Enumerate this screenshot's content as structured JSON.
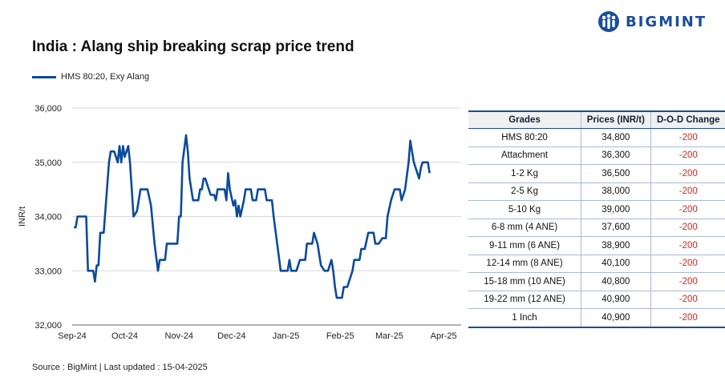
{
  "brand": {
    "name": "BIGMINT",
    "logo_color": "#1a4d9c"
  },
  "chart_data": {
    "type": "line",
    "title": "India : Alang ship breaking scrap price trend",
    "ylabel": "INR/t",
    "xlabel": "",
    "ylim": [
      32000,
      36000
    ],
    "y_ticks": [
      "32,000",
      "33,000",
      "34,000",
      "35,000",
      "36,000"
    ],
    "x_ticks": [
      "Sep-24",
      "Oct-24",
      "Nov-24",
      "Dec-24",
      "Jan-25",
      "Feb-25",
      "Mar-25",
      "Apr-25"
    ],
    "grid": "horizontal",
    "legend_position": "top-left",
    "series": [
      {
        "name": "HMS 80:20, Exy Alang",
        "color": "#0c4a9c",
        "points": [
          [
            "2024-09-02",
            33800
          ],
          [
            "2024-09-03",
            33800
          ],
          [
            "2024-09-04",
            34000
          ],
          [
            "2024-09-09",
            34000
          ],
          [
            "2024-09-10",
            33000
          ],
          [
            "2024-09-13",
            33000
          ],
          [
            "2024-09-14",
            32800
          ],
          [
            "2024-09-15",
            33100
          ],
          [
            "2024-09-16",
            33100
          ],
          [
            "2024-09-17",
            33700
          ],
          [
            "2024-09-19",
            33700
          ],
          [
            "2024-09-22",
            35000
          ],
          [
            "2024-09-23",
            35200
          ],
          [
            "2024-09-25",
            35200
          ],
          [
            "2024-09-27",
            35000
          ],
          [
            "2024-09-28",
            35300
          ],
          [
            "2024-09-29",
            35000
          ],
          [
            "2024-09-30",
            35300
          ],
          [
            "2024-10-01",
            35100
          ],
          [
            "2024-10-02",
            35200
          ],
          [
            "2024-10-03",
            35300
          ],
          [
            "2024-10-04",
            35000
          ],
          [
            "2024-10-06",
            34000
          ],
          [
            "2024-10-08",
            34100
          ],
          [
            "2024-10-10",
            34500
          ],
          [
            "2024-10-14",
            34500
          ],
          [
            "2024-10-16",
            34200
          ],
          [
            "2024-10-18",
            33500
          ],
          [
            "2024-10-20",
            33000
          ],
          [
            "2024-10-21",
            33200
          ],
          [
            "2024-10-24",
            33200
          ],
          [
            "2024-10-25",
            33500
          ],
          [
            "2024-10-31",
            33500
          ],
          [
            "2024-11-01",
            34000
          ],
          [
            "2024-11-02",
            34000
          ],
          [
            "2024-11-03",
            35000
          ],
          [
            "2024-11-05",
            35500
          ],
          [
            "2024-11-06",
            35200
          ],
          [
            "2024-11-07",
            34700
          ],
          [
            "2024-11-09",
            34300
          ],
          [
            "2024-11-12",
            34300
          ],
          [
            "2024-11-13",
            34500
          ],
          [
            "2024-11-14",
            34500
          ],
          [
            "2024-11-15",
            34700
          ],
          [
            "2024-11-16",
            34700
          ],
          [
            "2024-11-18",
            34500
          ],
          [
            "2024-11-19",
            34400
          ],
          [
            "2024-11-21",
            34400
          ],
          [
            "2024-11-22",
            34300
          ],
          [
            "2024-11-23",
            34500
          ],
          [
            "2024-11-27",
            34500
          ],
          [
            "2024-11-28",
            34300
          ],
          [
            "2024-11-29",
            34800
          ],
          [
            "2024-11-30",
            34500
          ],
          [
            "2024-12-02",
            34200
          ],
          [
            "2024-12-03",
            34300
          ],
          [
            "2024-12-04",
            34000
          ],
          [
            "2024-12-05",
            34200
          ],
          [
            "2024-12-06",
            34000
          ],
          [
            "2024-12-08",
            34300
          ],
          [
            "2024-12-09",
            34500
          ],
          [
            "2024-12-12",
            34500
          ],
          [
            "2024-12-13",
            34300
          ],
          [
            "2024-12-15",
            34300
          ],
          [
            "2024-12-16",
            34500
          ],
          [
            "2024-12-20",
            34500
          ],
          [
            "2024-12-21",
            34300
          ],
          [
            "2024-12-24",
            34300
          ],
          [
            "2024-12-25",
            34000
          ],
          [
            "2024-12-27",
            33500
          ],
          [
            "2024-12-29",
            33000
          ],
          [
            "2024-12-30",
            33000
          ],
          [
            "2025-01-02",
            33000
          ],
          [
            "2025-01-03",
            33200
          ],
          [
            "2025-01-04",
            33000
          ],
          [
            "2025-01-07",
            33000
          ],
          [
            "2025-01-09",
            33200
          ],
          [
            "2025-01-12",
            33200
          ],
          [
            "2025-01-13",
            33500
          ],
          [
            "2025-01-16",
            33500
          ],
          [
            "2025-01-17",
            33700
          ],
          [
            "2025-01-19",
            33500
          ],
          [
            "2025-01-21",
            33100
          ],
          [
            "2025-01-23",
            33000
          ],
          [
            "2025-01-25",
            33000
          ],
          [
            "2025-01-26",
            33100
          ],
          [
            "2025-01-27",
            33200
          ],
          [
            "2025-01-28",
            33000
          ],
          [
            "2025-01-29",
            32700
          ],
          [
            "2025-01-30",
            32500
          ],
          [
            "2025-02-02",
            32500
          ],
          [
            "2025-02-03",
            32700
          ],
          [
            "2025-02-05",
            32700
          ],
          [
            "2025-02-08",
            33000
          ],
          [
            "2025-02-09",
            33200
          ],
          [
            "2025-02-12",
            33200
          ],
          [
            "2025-02-13",
            33400
          ],
          [
            "2025-02-15",
            33400
          ],
          [
            "2025-02-17",
            33700
          ],
          [
            "2025-02-20",
            33700
          ],
          [
            "2025-02-21",
            33500
          ],
          [
            "2025-02-23",
            33500
          ],
          [
            "2025-02-25",
            33600
          ],
          [
            "2025-02-27",
            33600
          ],
          [
            "2025-02-28",
            34000
          ],
          [
            "2025-03-02",
            34300
          ],
          [
            "2025-03-04",
            34500
          ],
          [
            "2025-03-07",
            34500
          ],
          [
            "2025-03-08",
            34300
          ],
          [
            "2025-03-10",
            34500
          ],
          [
            "2025-03-12",
            35000
          ],
          [
            "2025-03-13",
            35400
          ],
          [
            "2025-03-15",
            35000
          ],
          [
            "2025-03-17",
            34800
          ],
          [
            "2025-03-18",
            34700
          ],
          [
            "2025-03-19",
            34900
          ],
          [
            "2025-03-20",
            35000
          ],
          [
            "2025-03-23",
            35000
          ],
          [
            "2025-03-24",
            34800
          ]
        ]
      }
    ]
  },
  "source": "Source : BigMint | Last updated : 15-04-2025",
  "table": {
    "headers": [
      "Grades",
      "Prices (INR/t)",
      "D-O-D Change"
    ],
    "rows": [
      [
        "HMS 80:20",
        "34,800",
        "-200"
      ],
      [
        "Attachment",
        "36,300",
        "-200"
      ],
      [
        "1-2 Kg",
        "36,500",
        "-200"
      ],
      [
        "2-5 Kg",
        "38,000",
        "-200"
      ],
      [
        "5-10 Kg",
        "39,000",
        "-200"
      ],
      [
        "6-8 mm (4 ANE)",
        "37,600",
        "-200"
      ],
      [
        "9-11 mm (6 ANE)",
        "38,900",
        "-200"
      ],
      [
        "12-14 mm (8 ANE)",
        "40,100",
        "-200"
      ],
      [
        "15-18 mm (10 ANE)",
        "40,800",
        "-200"
      ],
      [
        "19-22 mm (12 ANE)",
        "40,900",
        "-200"
      ],
      [
        "1 Inch",
        "40,900",
        "-200"
      ]
    ]
  }
}
